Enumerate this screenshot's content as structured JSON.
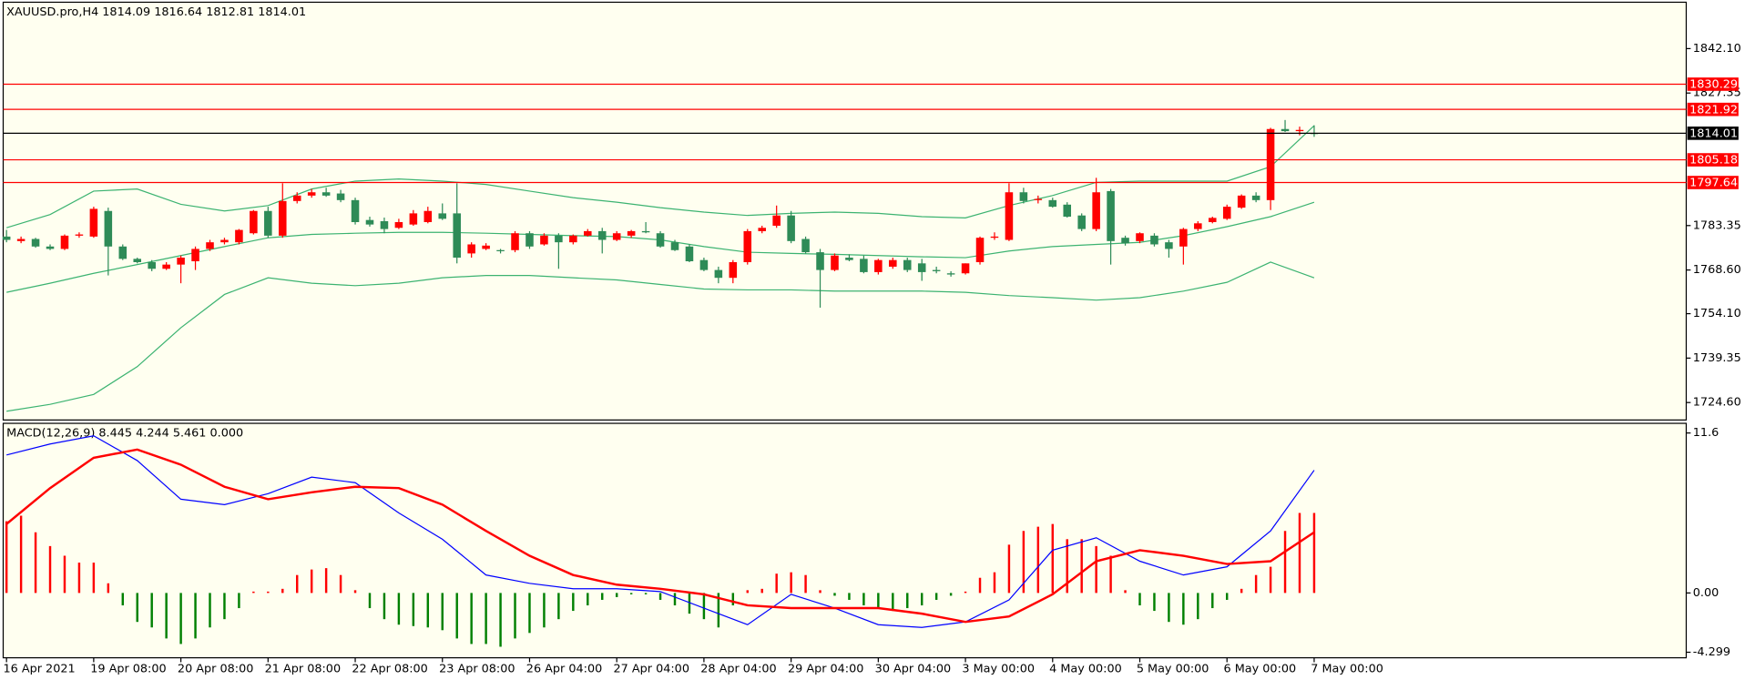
{
  "chart_data": [
    {
      "type": "candlestick",
      "title": "XAUUSD.pro,H4  1814.09 1816.64 1812.81 1814.01",
      "categories": [
        "16 Apr 2021",
        null,
        null,
        null,
        null,
        null,
        "19 Apr 08:00",
        null,
        null,
        null,
        null,
        null,
        "20 Apr 08:00",
        null,
        null,
        null,
        null,
        null,
        "21 Apr 08:00",
        null,
        null,
        null,
        null,
        null,
        "22 Apr 08:00",
        null,
        null,
        null,
        null,
        null,
        "23 Apr 08:00",
        null,
        null,
        null,
        null,
        null,
        "26 Apr 04:00",
        null,
        null,
        null,
        null,
        null,
        "27 Apr 04:00",
        null,
        null,
        null,
        null,
        null,
        "28 Apr 04:00",
        null,
        null,
        null,
        null,
        null,
        "29 Apr 04:00",
        null,
        null,
        null,
        null,
        null,
        "30 Apr 04:00",
        null,
        null,
        null,
        null,
        null,
        "3 May 00:00",
        null,
        null,
        null,
        null,
        null,
        "4 May 00:00",
        null,
        null,
        null,
        null,
        null,
        "5 May 00:00",
        null,
        null,
        null,
        null,
        null,
        "6 May 00:00",
        null,
        null,
        null,
        null,
        null,
        "7 May 00:00"
      ],
      "ohlc": [
        [
          1779.7,
          1781.9,
          1777.8,
          1778.6
        ],
        [
          1778.2,
          1779.7,
          1777.5,
          1778.9
        ],
        [
          1778.9,
          1779.3,
          1776.0,
          1776.4
        ],
        [
          1776.4,
          1777.1,
          1775.2,
          1775.6
        ],
        [
          1775.6,
          1780.4,
          1775.2,
          1780.0
        ],
        [
          1780.0,
          1781.1,
          1779.3,
          1780.4
        ],
        [
          1779.7,
          1789.6,
          1779.3,
          1788.9
        ],
        [
          1788.2,
          1789.3,
          1766.8,
          1776.4
        ],
        [
          1776.4,
          1777.1,
          1771.9,
          1772.3
        ],
        [
          1772.3,
          1772.7,
          1770.8,
          1771.2
        ],
        [
          1771.2,
          1771.9,
          1768.2,
          1769.0
        ],
        [
          1769.0,
          1771.2,
          1768.6,
          1770.4
        ],
        [
          1770.4,
          1773.4,
          1764.2,
          1772.7
        ],
        [
          1771.5,
          1776.4,
          1768.6,
          1775.6
        ],
        [
          1775.6,
          1778.6,
          1774.9,
          1777.8
        ],
        [
          1777.8,
          1779.3,
          1777.1,
          1778.6
        ],
        [
          1777.8,
          1782.2,
          1777.1,
          1781.9
        ],
        [
          1780.8,
          1788.5,
          1780.4,
          1788.2
        ],
        [
          1788.2,
          1789.6,
          1779.3,
          1780.0
        ],
        [
          1780.0,
          1797.4,
          1779.3,
          1791.5
        ],
        [
          1791.5,
          1794.4,
          1790.7,
          1793.3
        ],
        [
          1793.3,
          1795.5,
          1792.6,
          1794.4
        ],
        [
          1794.4,
          1795.9,
          1792.9,
          1793.3
        ],
        [
          1794.0,
          1795.2,
          1791.1,
          1791.8
        ],
        [
          1791.8,
          1792.6,
          1783.7,
          1784.5
        ],
        [
          1785.2,
          1786.3,
          1783.0,
          1783.7
        ],
        [
          1784.8,
          1786.0,
          1780.8,
          1782.2
        ],
        [
          1782.6,
          1785.6,
          1782.2,
          1784.5
        ],
        [
          1783.7,
          1788.5,
          1783.3,
          1787.4
        ],
        [
          1784.5,
          1789.6,
          1784.1,
          1788.2
        ],
        [
          1787.4,
          1790.7,
          1785.2,
          1785.6
        ],
        [
          1787.4,
          1797.4,
          1770.8,
          1772.7
        ],
        [
          1774.1,
          1777.8,
          1772.7,
          1777.1
        ],
        [
          1775.6,
          1777.5,
          1775.2,
          1776.7
        ],
        [
          1775.2,
          1775.6,
          1774.1,
          1774.9
        ],
        [
          1775.2,
          1781.5,
          1774.5,
          1780.8
        ],
        [
          1780.8,
          1781.5,
          1775.6,
          1776.4
        ],
        [
          1777.1,
          1780.8,
          1776.7,
          1780.0
        ],
        [
          1780.0,
          1780.8,
          1769.0,
          1777.8
        ],
        [
          1777.8,
          1780.4,
          1777.1,
          1780.0
        ],
        [
          1780.0,
          1782.2,
          1779.7,
          1781.5
        ],
        [
          1781.5,
          1782.6,
          1774.1,
          1778.6
        ],
        [
          1778.6,
          1781.5,
          1778.2,
          1780.8
        ],
        [
          1780.0,
          1781.9,
          1779.3,
          1781.5
        ],
        [
          1781.5,
          1784.5,
          1780.8,
          1781.1
        ],
        [
          1780.8,
          1781.5,
          1776.0,
          1776.4
        ],
        [
          1777.8,
          1778.6,
          1774.9,
          1775.2
        ],
        [
          1776.4,
          1777.1,
          1771.2,
          1771.5
        ],
        [
          1771.9,
          1772.7,
          1768.2,
          1768.6
        ],
        [
          1768.6,
          1769.7,
          1764.2,
          1766.0
        ],
        [
          1766.0,
          1771.9,
          1764.2,
          1771.2
        ],
        [
          1771.2,
          1782.2,
          1770.4,
          1781.5
        ],
        [
          1781.5,
          1783.3,
          1780.8,
          1782.6
        ],
        [
          1783.3,
          1790.0,
          1782.6,
          1786.7
        ],
        [
          1786.7,
          1788.2,
          1777.5,
          1778.2
        ],
        [
          1778.9,
          1779.7,
          1774.1,
          1774.5
        ],
        [
          1774.5,
          1775.6,
          1756.1,
          1768.6
        ],
        [
          1768.6,
          1774.1,
          1768.2,
          1773.4
        ],
        [
          1772.7,
          1773.8,
          1771.5,
          1771.9
        ],
        [
          1772.3,
          1773.4,
          1767.5,
          1767.9
        ],
        [
          1767.9,
          1772.3,
          1767.1,
          1771.9
        ],
        [
          1769.7,
          1772.7,
          1769.0,
          1771.9
        ],
        [
          1771.9,
          1772.7,
          1767.9,
          1768.6
        ],
        [
          1770.8,
          1772.3,
          1765.0,
          1767.9
        ],
        [
          1768.6,
          1769.7,
          1767.5,
          1768.2
        ],
        [
          1767.5,
          1768.2,
          1766.4,
          1767.1
        ],
        [
          1767.5,
          1770.8,
          1767.1,
          1770.8
        ],
        [
          1771.2,
          1779.7,
          1770.4,
          1779.3
        ],
        [
          1779.3,
          1781.1,
          1778.6,
          1779.7
        ],
        [
          1778.6,
          1797.4,
          1778.2,
          1794.4
        ],
        [
          1794.4,
          1795.9,
          1790.7,
          1791.5
        ],
        [
          1791.8,
          1793.3,
          1790.7,
          1792.2
        ],
        [
          1791.8,
          1792.6,
          1789.3,
          1789.6
        ],
        [
          1790.3,
          1791.1,
          1786.0,
          1786.3
        ],
        [
          1786.7,
          1787.4,
          1781.5,
          1782.2
        ],
        [
          1782.2,
          1799.2,
          1781.5,
          1794.4
        ],
        [
          1794.8,
          1795.5,
          1770.4,
          1778.2
        ],
        [
          1779.3,
          1780.0,
          1776.7,
          1777.5
        ],
        [
          1778.2,
          1781.1,
          1777.5,
          1780.8
        ],
        [
          1780.0,
          1780.8,
          1776.4,
          1777.1
        ],
        [
          1777.8,
          1778.6,
          1772.7,
          1775.6
        ],
        [
          1776.4,
          1782.6,
          1770.4,
          1782.2
        ],
        [
          1782.2,
          1784.8,
          1781.5,
          1784.1
        ],
        [
          1784.5,
          1786.3,
          1784.1,
          1785.9
        ],
        [
          1785.6,
          1790.3,
          1785.2,
          1789.6
        ],
        [
          1789.3,
          1793.7,
          1788.9,
          1793.3
        ],
        [
          1793.3,
          1794.4,
          1791.1,
          1791.8
        ],
        [
          1791.8,
          1815.8,
          1788.5,
          1815.4
        ],
        [
          1815.4,
          1818.4,
          1814.4,
          1814.7
        ],
        [
          1814.7,
          1816.2,
          1813.3,
          1815.1
        ],
        [
          1814.09,
          1816.64,
          1812.81,
          1814.01
        ]
      ],
      "up_color": "#ff0000",
      "down_color": "#2e8b57",
      "bands": {
        "color": "#3cb371",
        "x": [
          0,
          3,
          6,
          9,
          12,
          15,
          18,
          21,
          24,
          27,
          30,
          33,
          36,
          39,
          42,
          45,
          48,
          51,
          54,
          57,
          60,
          63,
          66,
          69,
          72,
          75,
          78,
          81,
          84,
          87,
          90
        ],
        "upper": [
          1782.6,
          1787.0,
          1794.8,
          1795.5,
          1790.4,
          1788.2,
          1790.0,
          1795.5,
          1798.1,
          1798.8,
          1798.1,
          1797.0,
          1794.8,
          1792.6,
          1791.1,
          1789.3,
          1787.8,
          1786.7,
          1787.4,
          1787.8,
          1787.4,
          1786.3,
          1785.9,
          1790.0,
          1793.3,
          1797.7,
          1798.1,
          1798.1,
          1798.1,
          1802.9,
          1816.5
        ],
        "middle": [
          1761.2,
          1764.2,
          1767.5,
          1770.4,
          1773.4,
          1776.4,
          1779.3,
          1780.4,
          1780.8,
          1781.1,
          1781.1,
          1780.8,
          1780.4,
          1780.0,
          1779.7,
          1778.6,
          1776.4,
          1774.5,
          1774.1,
          1773.8,
          1773.4,
          1773.0,
          1772.7,
          1774.9,
          1776.4,
          1777.1,
          1777.8,
          1780.0,
          1783.0,
          1786.3,
          1791.1
        ],
        "lower": [
          1721.7,
          1724.0,
          1727.3,
          1736.5,
          1749.4,
          1760.5,
          1766.0,
          1764.2,
          1763.4,
          1764.2,
          1766.0,
          1766.8,
          1766.8,
          1766.0,
          1765.3,
          1763.8,
          1762.3,
          1762.0,
          1762.0,
          1761.6,
          1761.6,
          1761.6,
          1761.2,
          1760.1,
          1759.4,
          1758.6,
          1759.4,
          1761.6,
          1764.5,
          1771.2,
          1766.0
        ]
      },
      "levels": [
        {
          "value": 1830.29,
          "color": "#ff0000"
        },
        {
          "value": 1821.92,
          "color": "#ff0000"
        },
        {
          "value": 1814.01,
          "color": "#000000"
        },
        {
          "value": 1805.18,
          "color": "#ff0000"
        },
        {
          "value": 1797.64,
          "color": "#ff0000"
        }
      ],
      "ylim": [
        1718.8,
        1857.5
      ],
      "yticks": [
        {
          "value": 1724.6,
          "label": "1724.60"
        },
        {
          "value": 1739.35,
          "label": "1739.35"
        },
        {
          "value": 1754.1,
          "label": "1754.10"
        },
        {
          "value": 1768.6,
          "label": "1768.60"
        },
        {
          "value": 1783.35,
          "label": "1783.35"
        },
        {
          "value": 1827.35,
          "label": "1827.35"
        },
        {
          "value": 1842.1,
          "label": "1842.10"
        }
      ]
    },
    {
      "type": "macd",
      "title": "MACD(12,26,9) 8.445 4.244 5.461 0.000",
      "histogram": [
        5.2,
        5.6,
        4.4,
        3.4,
        2.7,
        2.2,
        2.2,
        0.7,
        -0.9,
        -2.1,
        -2.5,
        -3.3,
        -3.7,
        -3.3,
        -2.5,
        -1.9,
        -1.1,
        0.1,
        0.1,
        0.3,
        1.3,
        1.7,
        1.8,
        1.3,
        0.2,
        -1.1,
        -1.9,
        -2.3,
        -2.4,
        -2.5,
        -2.7,
        -3.3,
        -3.7,
        -3.7,
        -3.9,
        -3.3,
        -2.9,
        -2.5,
        -1.9,
        -1.3,
        -0.9,
        -0.5,
        -0.3,
        -0.1,
        -0.1,
        -0.5,
        -0.9,
        -1.5,
        -1.9,
        -2.5,
        -0.9,
        0.2,
        0.3,
        1.4,
        1.5,
        1.3,
        0.2,
        -0.2,
        -0.5,
        -0.9,
        -1.1,
        -1.3,
        -1.1,
        -0.9,
        -0.5,
        -0.2,
        0.1,
        1.1,
        1.5,
        3.5,
        4.5,
        4.8,
        5.0,
        3.9,
        3.9,
        3.4,
        2.7,
        0.2,
        -0.9,
        -1.3,
        -2.1,
        -2.3,
        -1.9,
        -1.1,
        -0.5,
        0.3,
        1.3,
        1.9,
        4.5,
        5.8,
        5.8
      ],
      "up_color": "#ff0000",
      "down_color": "#008000",
      "x": [
        0,
        3,
        6,
        9,
        12,
        15,
        18,
        21,
        24,
        27,
        30,
        33,
        36,
        39,
        42,
        45,
        48,
        51,
        54,
        57,
        60,
        63,
        66,
        69,
        72,
        75,
        78,
        81,
        84,
        87,
        90
      ],
      "macd": {
        "color": "#0000ff",
        "values": [
          10.0,
          10.8,
          11.4,
          9.6,
          6.8,
          6.4,
          7.2,
          8.4,
          8.0,
          5.8,
          3.9,
          1.3,
          0.7,
          0.3,
          0.3,
          0.1,
          -1.1,
          -2.3,
          -0.1,
          -1.1,
          -2.3,
          -2.5,
          -2.1,
          -0.5,
          3.1,
          4.0,
          2.3,
          1.3,
          1.9,
          4.5,
          8.9
        ]
      },
      "signal": {
        "color": "#ff0000",
        "values": [
          5.0,
          7.6,
          9.8,
          10.4,
          9.3,
          7.7,
          6.8,
          7.3,
          7.7,
          7.6,
          6.4,
          4.5,
          2.7,
          1.3,
          0.6,
          0.3,
          -0.1,
          -0.9,
          -1.1,
          -1.1,
          -1.1,
          -1.5,
          -2.1,
          -1.7,
          -0.1,
          2.3,
          3.1,
          2.7,
          2.1,
          2.3,
          4.4
        ]
      },
      "ylim": [
        -4.7,
        12.3
      ],
      "yticks": [
        11.6,
        {
          "value": 0,
          "label": "0.00"
        },
        -4.299
      ]
    }
  ]
}
